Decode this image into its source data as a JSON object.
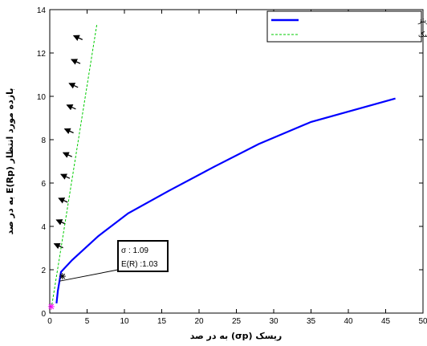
{
  "chart_data": {
    "type": "line",
    "xlabel": "ریسک (σp) به در صد",
    "ylabel": "بازده مورد انتظار E(Rp) به در صد",
    "xlim": [
      0,
      50
    ],
    "ylim": [
      0,
      14
    ],
    "xticks": [
      0,
      5,
      10,
      15,
      20,
      25,
      30,
      35,
      40,
      45,
      50
    ],
    "yticks": [
      0,
      2,
      4,
      6,
      8,
      10,
      12,
      14
    ],
    "grid": false,
    "legend_position": "top-right",
    "series": [
      {
        "name": "مرز کارا مارکویتز",
        "color": "#0000ff",
        "style": "solid",
        "points": [
          [
            0.9,
            0.45
          ],
          [
            1.09,
            1.03
          ],
          [
            1.5,
            1.9
          ],
          [
            3.0,
            2.45
          ],
          [
            6.5,
            3.55
          ],
          [
            10.5,
            4.6
          ],
          [
            16,
            5.65
          ],
          [
            22,
            6.75
          ],
          [
            28,
            7.8
          ],
          [
            35,
            8.82
          ],
          [
            46.3,
            9.9
          ]
        ]
      },
      {
        "name": "محدودیت ارزش در معرض ریسک",
        "color": "#00cc00",
        "style": "dashed",
        "points": [
          [
            0.2,
            0.2
          ],
          [
            6.3,
            13.3
          ]
        ]
      }
    ],
    "arrows": [
      [
        3.2,
        12.8
      ],
      [
        2.9,
        11.7
      ],
      [
        2.6,
        10.6
      ],
      [
        2.3,
        9.6
      ],
      [
        2.0,
        8.5
      ],
      [
        1.8,
        7.4
      ],
      [
        1.5,
        6.4
      ],
      [
        1.2,
        5.3
      ],
      [
        0.9,
        4.3
      ],
      [
        0.6,
        3.2
      ]
    ],
    "markers": [
      {
        "x": 0.2,
        "y": 0.3,
        "color": "#ff00ff",
        "symbol": "*"
      },
      {
        "x": 1.7,
        "y": 1.7,
        "color": "#000000",
        "symbol": "*"
      }
    ],
    "annotation": {
      "line1": "σ : 1.09",
      "line2": "E(R) :1.03",
      "point": [
        1.09,
        1.03
      ]
    }
  }
}
